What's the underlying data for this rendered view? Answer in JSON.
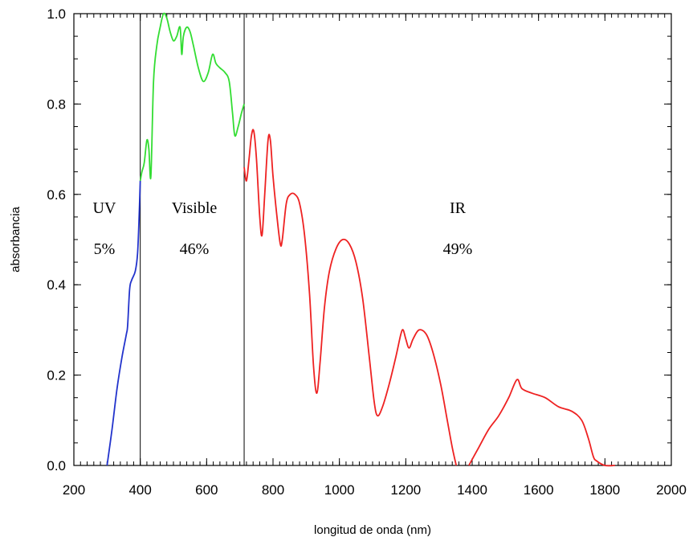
{
  "chart_data": {
    "type": "line",
    "xlabel": "longitud de onda (nm)",
    "ylabel": "absorbancia",
    "xlim": [
      200,
      2000
    ],
    "ylim": [
      0,
      1.0
    ],
    "xticks": [
      200,
      400,
      600,
      800,
      1000,
      1200,
      1400,
      1600,
      1800,
      2000
    ],
    "yticks": [
      0.0,
      0.2,
      0.4,
      0.6,
      0.8,
      1.0
    ],
    "xtick_labels": [
      "200",
      "400",
      "600",
      "800",
      "1000",
      "1200",
      "1400",
      "1600",
      "1800",
      "2000"
    ],
    "ytick_labels": [
      "0.0",
      "0.2",
      "0.4",
      "0.6",
      "0.8",
      "1.0"
    ],
    "grid": false,
    "dividers": [
      400,
      713
    ],
    "regions": [
      {
        "name": "UV",
        "percent": "5%"
      },
      {
        "name": "Visible",
        "percent": "46%"
      },
      {
        "name": "IR",
        "percent": "49%"
      }
    ],
    "series": [
      {
        "color": "#2233cc",
        "points": [
          [
            300,
            0.0
          ],
          [
            315,
            0.08
          ],
          [
            330,
            0.17
          ],
          [
            345,
            0.24
          ],
          [
            358,
            0.29
          ],
          [
            362,
            0.31
          ],
          [
            368,
            0.39
          ],
          [
            374,
            0.41
          ],
          [
            385,
            0.43
          ],
          [
            392,
            0.47
          ],
          [
            397,
            0.56
          ],
          [
            400,
            0.63
          ]
        ]
      },
      {
        "color": "#33dd33",
        "points": [
          [
            400,
            0.63
          ],
          [
            405,
            0.65
          ],
          [
            412,
            0.67
          ],
          [
            420,
            0.72
          ],
          [
            426,
            0.7
          ],
          [
            432,
            0.64
          ],
          [
            440,
            0.85
          ],
          [
            450,
            0.93
          ],
          [
            460,
            0.97
          ],
          [
            470,
            1.0
          ],
          [
            480,
            0.99
          ],
          [
            490,
            0.96
          ],
          [
            500,
            0.94
          ],
          [
            510,
            0.95
          ],
          [
            520,
            0.97
          ],
          [
            525,
            0.91
          ],
          [
            530,
            0.95
          ],
          [
            540,
            0.97
          ],
          [
            550,
            0.96
          ],
          [
            560,
            0.93
          ],
          [
            575,
            0.88
          ],
          [
            590,
            0.85
          ],
          [
            605,
            0.87
          ],
          [
            618,
            0.91
          ],
          [
            628,
            0.89
          ],
          [
            640,
            0.88
          ],
          [
            655,
            0.87
          ],
          [
            668,
            0.85
          ],
          [
            678,
            0.78
          ],
          [
            685,
            0.73
          ],
          [
            695,
            0.75
          ],
          [
            705,
            0.78
          ],
          [
            713,
            0.8
          ]
        ]
      },
      {
        "color": "#ee2222",
        "points": [
          [
            713,
            0.66
          ],
          [
            720,
            0.63
          ],
          [
            728,
            0.68
          ],
          [
            735,
            0.73
          ],
          [
            742,
            0.74
          ],
          [
            750,
            0.68
          ],
          [
            760,
            0.55
          ],
          [
            767,
            0.51
          ],
          [
            775,
            0.6
          ],
          [
            785,
            0.72
          ],
          [
            792,
            0.72
          ],
          [
            800,
            0.64
          ],
          [
            812,
            0.55
          ],
          [
            822,
            0.49
          ],
          [
            828,
            0.5
          ],
          [
            840,
            0.58
          ],
          [
            852,
            0.6
          ],
          [
            866,
            0.6
          ],
          [
            880,
            0.58
          ],
          [
            895,
            0.51
          ],
          [
            910,
            0.38
          ],
          [
            922,
            0.22
          ],
          [
            932,
            0.16
          ],
          [
            942,
            0.23
          ],
          [
            955,
            0.35
          ],
          [
            970,
            0.43
          ],
          [
            990,
            0.48
          ],
          [
            1010,
            0.5
          ],
          [
            1030,
            0.49
          ],
          [
            1050,
            0.45
          ],
          [
            1070,
            0.37
          ],
          [
            1090,
            0.24
          ],
          [
            1105,
            0.14
          ],
          [
            1115,
            0.11
          ],
          [
            1130,
            0.13
          ],
          [
            1150,
            0.18
          ],
          [
            1170,
            0.24
          ],
          [
            1185,
            0.29
          ],
          [
            1192,
            0.3
          ],
          [
            1200,
            0.28
          ],
          [
            1210,
            0.26
          ],
          [
            1222,
            0.28
          ],
          [
            1240,
            0.3
          ],
          [
            1262,
            0.29
          ],
          [
            1282,
            0.25
          ],
          [
            1305,
            0.18
          ],
          [
            1325,
            0.1
          ],
          [
            1340,
            0.04
          ],
          [
            1352,
            0.0
          ]
        ]
      },
      {
        "color": "#ee2222",
        "points": [
          [
            1390,
            0.0
          ],
          [
            1420,
            0.04
          ],
          [
            1450,
            0.08
          ],
          [
            1480,
            0.11
          ],
          [
            1510,
            0.15
          ],
          [
            1535,
            0.19
          ],
          [
            1550,
            0.17
          ],
          [
            1580,
            0.16
          ],
          [
            1620,
            0.15
          ],
          [
            1660,
            0.13
          ],
          [
            1700,
            0.12
          ],
          [
            1730,
            0.1
          ],
          [
            1750,
            0.06
          ],
          [
            1765,
            0.02
          ],
          [
            1775,
            0.01
          ],
          [
            1800,
            0.0
          ],
          [
            1830,
            0.0
          ]
        ]
      }
    ]
  }
}
